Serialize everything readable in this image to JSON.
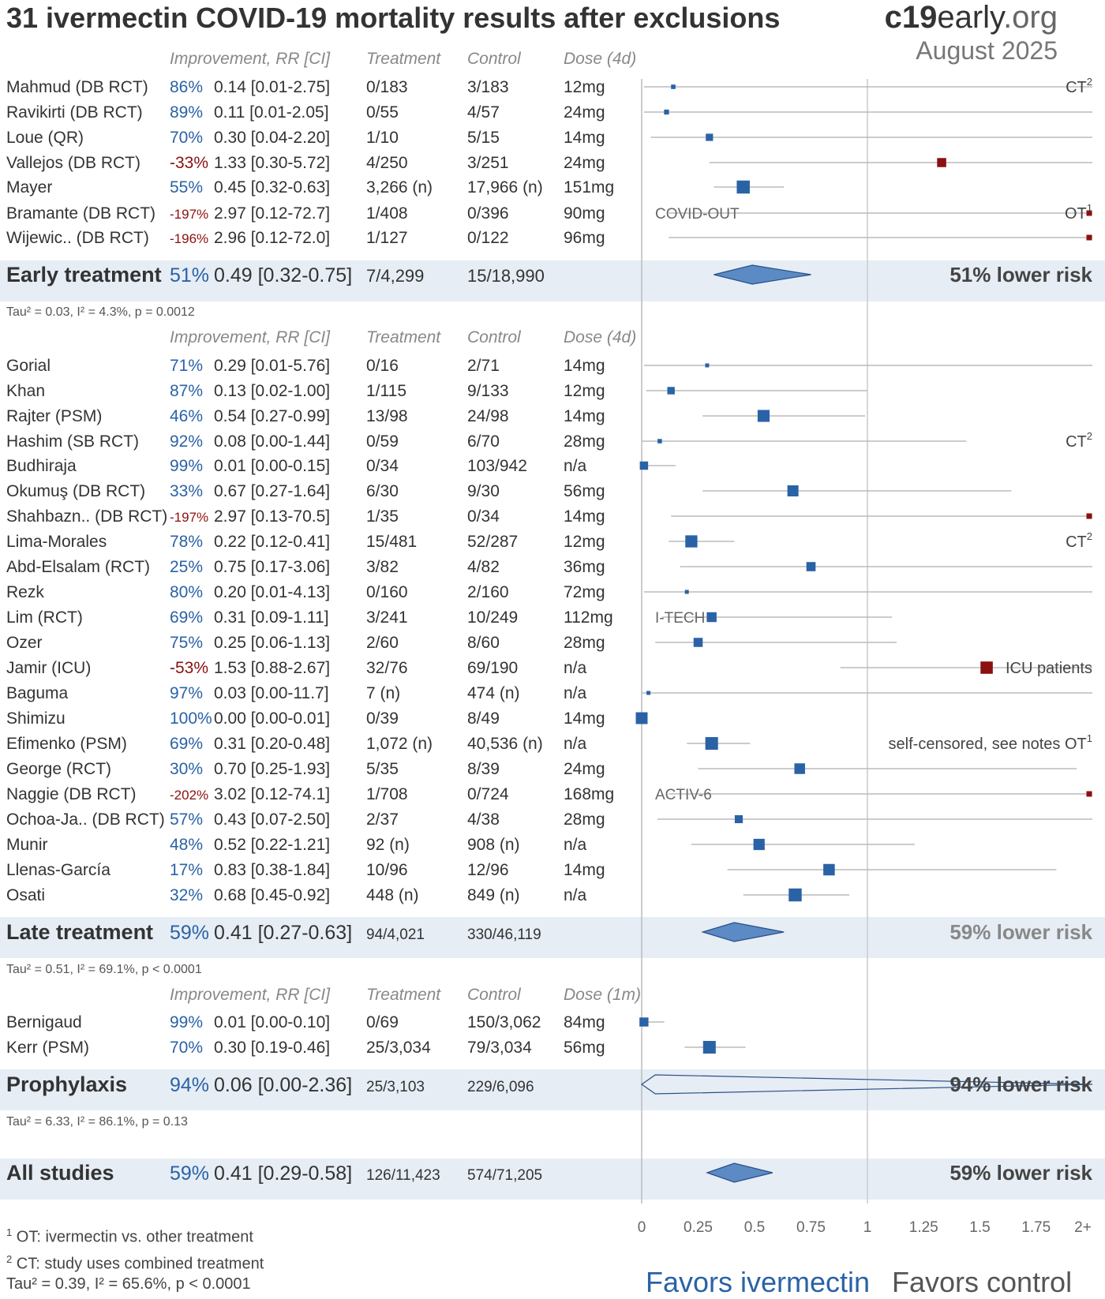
{
  "header": {
    "title": "31 ivermectin COVID-19 mortality results after exclusions",
    "brand_bold": "c19",
    "brand_rest": "early",
    "brand_tld": ".org",
    "date": "August 2025"
  },
  "colors": {
    "favor": "#2a62a6",
    "against": "#8b1010",
    "band": "#e6edf5",
    "diamond": "#5b8ac4"
  },
  "footer": {
    "note1": "OT: ivermectin vs. other treatment",
    "note2": "CT: study uses combined treatment",
    "note1_sup": "1",
    "note2_sup": "2",
    "overall_het": "Tau² = 0.39, I² = 65.6%, p < 0.0001",
    "favors_ivermectin": "Favors ivermectin",
    "favors_control": "Favors control"
  },
  "chart_data": {
    "type": "forest",
    "x_ticks": [
      "0",
      "0.25",
      "0.5",
      "0.75",
      "1",
      "1.25",
      "1.5",
      "1.75",
      "2+"
    ],
    "x_range": [
      0,
      2
    ],
    "groups": [
      {
        "name": "early",
        "columns": {
          "improvement": "Improvement, RR [CI]",
          "treatment": "Treatment",
          "control": "Control",
          "dose": "Dose (4d)"
        },
        "studies": [
          {
            "study": "Mahmud (DB RCT)",
            "improvement": "86%",
            "rr_text": "0.14 [0.01-2.75]",
            "rr": 0.14,
            "lo": 0.01,
            "hi": 2.75,
            "treatment": "0/183",
            "control": "3/183",
            "dose": "12mg",
            "note": "CT",
            "note_sup": "2"
          },
          {
            "study": "Ravikirti (DB RCT)",
            "improvement": "89%",
            "rr_text": "0.11 [0.01-2.05]",
            "rr": 0.11,
            "lo": 0.01,
            "hi": 2.05,
            "treatment": "0/55",
            "control": "4/57",
            "dose": "24mg"
          },
          {
            "study": "Loue (QR)",
            "improvement": "70%",
            "rr_text": "0.30 [0.04-2.20]",
            "rr": 0.3,
            "lo": 0.04,
            "hi": 2.2,
            "treatment": "1/10",
            "control": "5/15",
            "dose": "14mg"
          },
          {
            "study": "Vallejos (DB RCT)",
            "improvement": "-33%",
            "rr_text": "1.33 [0.30-5.72]",
            "rr": 1.33,
            "lo": 0.3,
            "hi": 5.72,
            "treatment": "4/250",
            "control": "3/251",
            "dose": "24mg"
          },
          {
            "study": "Mayer",
            "improvement": "55%",
            "rr_text": "0.45 [0.32-0.63]",
            "rr": 0.45,
            "lo": 0.32,
            "hi": 0.63,
            "treatment": "3,266 (n)",
            "control": "17,966 (n)",
            "dose": "151mg"
          },
          {
            "study": "Bramante (DB RCT)",
            "improvement": "-197%",
            "rr_text": "2.97 [0.12-72.7]",
            "rr": 2.97,
            "lo": 0.12,
            "hi": 72.7,
            "treatment": "1/408",
            "control": "0/396",
            "dose": "90mg",
            "trial": "COVID-OUT",
            "note": "OT",
            "note_sup": "1"
          },
          {
            "study": "Wijewic.. (DB RCT)",
            "improvement": "-196%",
            "rr_text": "2.96 [0.12-72.0]",
            "rr": 2.96,
            "lo": 0.12,
            "hi": 72.0,
            "treatment": "1/127",
            "control": "0/122",
            "dose": "96mg"
          }
        ],
        "summary": {
          "label": "Early treatment",
          "improvement": "51%",
          "rr_text": "0.49 [0.32-0.75]",
          "rr": 0.49,
          "lo": 0.32,
          "hi": 0.75,
          "treatment": "7/4,299",
          "control": "15/18,990",
          "risk_text": "51% lower risk"
        },
        "heterogeneity": "Tau² = 0.03, I² = 4.3%, p = 0.0012"
      },
      {
        "name": "late",
        "columns": {
          "improvement": "Improvement, RR [CI]",
          "treatment": "Treatment",
          "control": "Control",
          "dose": "Dose (4d)"
        },
        "studies": [
          {
            "study": "Gorial",
            "improvement": "71%",
            "rr_text": "0.29 [0.01-5.76]",
            "rr": 0.29,
            "lo": 0.01,
            "hi": 5.76,
            "treatment": "0/16",
            "control": "2/71",
            "dose": "14mg"
          },
          {
            "study": "Khan",
            "improvement": "87%",
            "rr_text": "0.13 [0.02-1.00]",
            "rr": 0.13,
            "lo": 0.02,
            "hi": 1.0,
            "treatment": "1/115",
            "control": "9/133",
            "dose": "12mg"
          },
          {
            "study": "Rajter (PSM)",
            "improvement": "46%",
            "rr_text": "0.54 [0.27-0.99]",
            "rr": 0.54,
            "lo": 0.27,
            "hi": 0.99,
            "treatment": "13/98",
            "control": "24/98",
            "dose": "14mg"
          },
          {
            "study": "Hashim (SB RCT)",
            "improvement": "92%",
            "rr_text": "0.08 [0.00-1.44]",
            "rr": 0.08,
            "lo": 0.0,
            "hi": 1.44,
            "treatment": "0/59",
            "control": "6/70",
            "dose": "28mg",
            "note": "CT",
            "note_sup": "2"
          },
          {
            "study": "Budhiraja",
            "improvement": "99%",
            "rr_text": "0.01 [0.00-0.15]",
            "rr": 0.01,
            "lo": 0.0,
            "hi": 0.15,
            "treatment": "0/34",
            "control": "103/942",
            "dose": "n/a"
          },
          {
            "study": "Okumuş (DB RCT)",
            "improvement": "33%",
            "rr_text": "0.67 [0.27-1.64]",
            "rr": 0.67,
            "lo": 0.27,
            "hi": 1.64,
            "treatment": "6/30",
            "control": "9/30",
            "dose": "56mg"
          },
          {
            "study": "Shahbazn.. (DB RCT)",
            "improvement": "-197%",
            "rr_text": "2.97 [0.13-70.5]",
            "rr": 2.97,
            "lo": 0.13,
            "hi": 70.5,
            "treatment": "1/35",
            "control": "0/34",
            "dose": "14mg"
          },
          {
            "study": "Lima-Morales",
            "improvement": "78%",
            "rr_text": "0.22 [0.12-0.41]",
            "rr": 0.22,
            "lo": 0.12,
            "hi": 0.41,
            "treatment": "15/481",
            "control": "52/287",
            "dose": "12mg",
            "note": "CT",
            "note_sup": "2"
          },
          {
            "study": "Abd-Elsalam (RCT)",
            "improvement": "25%",
            "rr_text": "0.75 [0.17-3.06]",
            "rr": 0.75,
            "lo": 0.17,
            "hi": 3.06,
            "treatment": "3/82",
            "control": "4/82",
            "dose": "36mg"
          },
          {
            "study": "Rezk",
            "improvement": "80%",
            "rr_text": "0.20 [0.01-4.13]",
            "rr": 0.2,
            "lo": 0.01,
            "hi": 4.13,
            "treatment": "0/160",
            "control": "2/160",
            "dose": "72mg"
          },
          {
            "study": "Lim (RCT)",
            "improvement": "69%",
            "rr_text": "0.31 [0.09-1.11]",
            "rr": 0.31,
            "lo": 0.09,
            "hi": 1.11,
            "treatment": "3/241",
            "control": "10/249",
            "dose": "112mg",
            "trial": "I-TECH"
          },
          {
            "study": "Ozer",
            "improvement": "75%",
            "rr_text": "0.25 [0.06-1.13]",
            "rr": 0.25,
            "lo": 0.06,
            "hi": 1.13,
            "treatment": "2/60",
            "control": "8/60",
            "dose": "28mg"
          },
          {
            "study": "Jamir (ICU)",
            "improvement": "-53%",
            "rr_text": "1.53 [0.88-2.67]",
            "rr": 1.53,
            "lo": 0.88,
            "hi": 2.67,
            "treatment": "32/76",
            "control": "69/190",
            "dose": "n/a",
            "note": "ICU patients"
          },
          {
            "study": "Baguma",
            "improvement": "97%",
            "rr_text": "0.03 [0.00-11.7]",
            "rr": 0.03,
            "lo": 0.0,
            "hi": 11.7,
            "treatment": "7 (n)",
            "control": "474 (n)",
            "dose": "n/a"
          },
          {
            "study": "Shimizu",
            "improvement": "100%",
            "rr_text": "0.00 [0.00-0.01]",
            "rr": 0.0,
            "lo": 0.0,
            "hi": 0.01,
            "treatment": "0/39",
            "control": "8/49",
            "dose": "14mg"
          },
          {
            "study": "Efimenko (PSM)",
            "improvement": "69%",
            "rr_text": "0.31 [0.20-0.48]",
            "rr": 0.31,
            "lo": 0.2,
            "hi": 0.48,
            "treatment": "1,072 (n)",
            "control": "40,536 (n)",
            "dose": "n/a",
            "note": "self-censored, see notes OT",
            "note_sup": "1"
          },
          {
            "study": "George (RCT)",
            "improvement": "30%",
            "rr_text": "0.70 [0.25-1.93]",
            "rr": 0.7,
            "lo": 0.25,
            "hi": 1.93,
            "treatment": "5/35",
            "control": "8/39",
            "dose": "24mg"
          },
          {
            "study": "Naggie (DB RCT)",
            "improvement": "-202%",
            "rr_text": "3.02 [0.12-74.1]",
            "rr": 3.02,
            "lo": 0.12,
            "hi": 74.1,
            "treatment": "1/708",
            "control": "0/724",
            "dose": "168mg",
            "trial": "ACTIV-6"
          },
          {
            "study": "Ochoa-Ja.. (DB RCT)",
            "improvement": "57%",
            "rr_text": "0.43 [0.07-2.50]",
            "rr": 0.43,
            "lo": 0.07,
            "hi": 2.5,
            "treatment": "2/37",
            "control": "4/38",
            "dose": "28mg"
          },
          {
            "study": "Munir",
            "improvement": "48%",
            "rr_text": "0.52 [0.22-1.21]",
            "rr": 0.52,
            "lo": 0.22,
            "hi": 1.21,
            "treatment": "92 (n)",
            "control": "908 (n)",
            "dose": "n/a"
          },
          {
            "study": "Llenas-García",
            "improvement": "17%",
            "rr_text": "0.83 [0.38-1.84]",
            "rr": 0.83,
            "lo": 0.38,
            "hi": 1.84,
            "treatment": "10/96",
            "control": "12/96",
            "dose": "14mg"
          },
          {
            "study": "Osati",
            "improvement": "32%",
            "rr_text": "0.68 [0.45-0.92]",
            "rr": 0.68,
            "lo": 0.45,
            "hi": 0.92,
            "treatment": "448 (n)",
            "control": "849 (n)",
            "dose": "n/a"
          }
        ],
        "summary": {
          "label": "Late treatment",
          "improvement": "59%",
          "rr_text": "0.41 [0.27-0.63]",
          "rr": 0.41,
          "lo": 0.27,
          "hi": 0.63,
          "treatment": "94/4,021",
          "control": "330/46,119",
          "risk_text": "59% lower risk"
        },
        "heterogeneity": "Tau² = 0.51, I² = 69.1%, p < 0.0001"
      },
      {
        "name": "prophylaxis",
        "columns": {
          "improvement": "Improvement, RR [CI]",
          "treatment": "Treatment",
          "control": "Control",
          "dose": "Dose (1m)"
        },
        "studies": [
          {
            "study": "Bernigaud",
            "improvement": "99%",
            "rr_text": "0.01 [0.00-0.10]",
            "rr": 0.01,
            "lo": 0.0,
            "hi": 0.1,
            "treatment": "0/69",
            "control": "150/3,062",
            "dose": "84mg"
          },
          {
            "study": "Kerr (PSM)",
            "improvement": "70%",
            "rr_text": "0.30 [0.19-0.46]",
            "rr": 0.3,
            "lo": 0.19,
            "hi": 0.46,
            "treatment": "25/3,034",
            "control": "79/3,034",
            "dose": "56mg"
          }
        ],
        "summary": {
          "label": "Prophylaxis",
          "improvement": "94%",
          "rr_text": "0.06 [0.00-2.36]",
          "rr": 0.06,
          "lo": 0.0,
          "hi": 2.36,
          "treatment": "25/3,103",
          "control": "229/6,096",
          "risk_text": "94% lower risk"
        },
        "heterogeneity": "Tau² = 6.33, I² = 86.1%, p = 0.13"
      }
    ],
    "overall": {
      "label": "All studies",
      "improvement": "59%",
      "rr_text": "0.41 [0.29-0.58]",
      "rr": 0.41,
      "lo": 0.29,
      "hi": 0.58,
      "treatment": "126/11,423",
      "control": "574/71,205",
      "risk_text": "59% lower risk"
    }
  }
}
